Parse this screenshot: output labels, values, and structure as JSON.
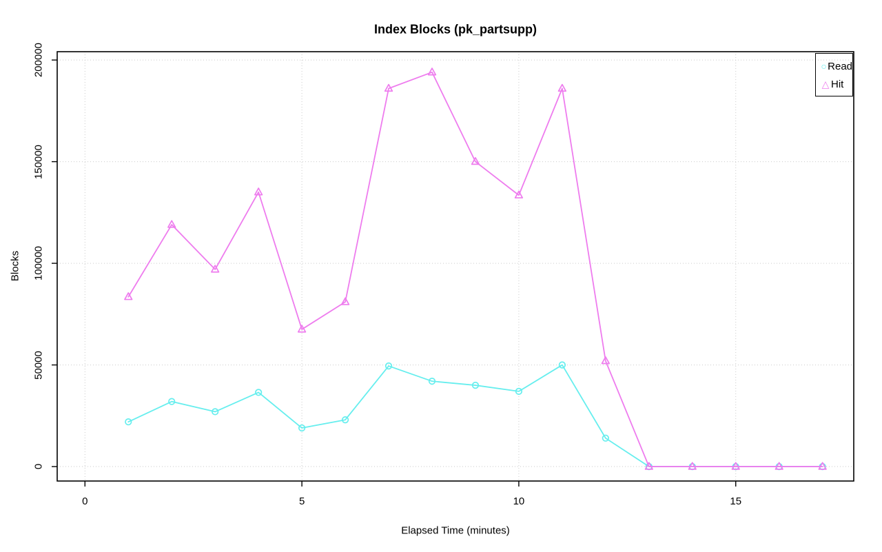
{
  "chart_data": {
    "type": "line",
    "title": "Index Blocks (pk_partsupp)",
    "xlabel": "Elapsed Time (minutes)",
    "ylabel": "Blocks",
    "x": [
      1,
      2,
      3,
      4,
      5,
      6,
      7,
      8,
      9,
      10,
      11,
      12,
      13,
      14,
      15,
      16,
      17
    ],
    "series": [
      {
        "name": "Read",
        "marker": "circle",
        "color": "#66EEEE",
        "values": [
          22000,
          32000,
          27000,
          36500,
          19000,
          23000,
          49500,
          42000,
          40000,
          37000,
          50000,
          14000,
          0,
          0,
          0,
          0,
          0
        ]
      },
      {
        "name": "Hit",
        "marker": "triangle",
        "color": "#EE7CEE",
        "values": [
          83500,
          119000,
          97000,
          135000,
          67500,
          81000,
          186000,
          194000,
          150000,
          133500,
          186000,
          52000,
          0,
          0,
          0,
          0,
          0
        ]
      }
    ],
    "x_ticks": [
      0,
      5,
      10,
      15
    ],
    "x_tick_labels": [
      "0",
      "5",
      "10",
      "15"
    ],
    "y_ticks": [
      0,
      50000,
      100000,
      150000,
      200000
    ],
    "y_tick_labels": [
      "0",
      "50000",
      "100000",
      "150000",
      "200000"
    ],
    "xlim": [
      -0.64,
      17.72
    ],
    "ylim": [
      -7100,
      204100
    ],
    "grid": true,
    "grid_color": "#C9C9C9",
    "axis_color": "#000000",
    "legend_position": "topright"
  }
}
